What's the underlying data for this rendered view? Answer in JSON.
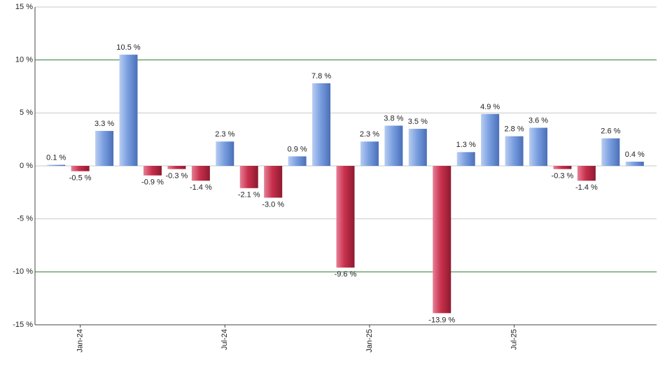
{
  "chart_data": {
    "type": "bar",
    "categories": [
      null,
      "Jan-24",
      null,
      null,
      null,
      null,
      null,
      "Jul-24",
      null,
      null,
      null,
      null,
      null,
      "Jan-25",
      null,
      null,
      null,
      null,
      null,
      "Jul-25",
      null,
      null,
      null,
      null,
      null
    ],
    "values": [
      0.1,
      -0.5,
      3.3,
      10.5,
      -0.9,
      -0.3,
      -1.4,
      2.3,
      -2.1,
      -3.0,
      0.9,
      7.8,
      -9.6,
      2.3,
      3.8,
      3.5,
      -13.9,
      1.3,
      4.9,
      2.8,
      3.6,
      -0.3,
      -1.4,
      2.6,
      0.4
    ],
    "value_labels": [
      "0.1 %",
      "-0.5 %",
      "3.3 %",
      "10.5 %",
      "-0.9 %",
      "-0.3 %",
      "-1.4 %",
      "2.3 %",
      "-2.1 %",
      "-3.0 %",
      "0.9 %",
      "7.8 %",
      "-9.6 %",
      "2.3 %",
      "3.8 %",
      "3.5 %",
      "-13.9 %",
      "1.3 %",
      "4.9 %",
      "2.8 %",
      "3.6 %",
      "-0.3 %",
      "-1.4 %",
      "2.6 %",
      "0.4 %"
    ],
    "positive_color": "#7a9fe0",
    "negative_color": "#c8304c",
    "ylim": [
      -15,
      15
    ],
    "yticks": [
      {
        "value": -15,
        "label": "-15 %"
      },
      {
        "value": -10,
        "label": "-10 %"
      },
      {
        "value": -5,
        "label": "-5 %"
      },
      {
        "value": 0,
        "label": "0 %"
      },
      {
        "value": 5,
        "label": "5 %"
      },
      {
        "value": 10,
        "label": "10 %"
      },
      {
        "value": 15,
        "label": "15 %"
      }
    ],
    "grid": true,
    "grid_color": "#c8c8c8",
    "highlight_grid_color": "#2e7d32",
    "highlight_ticks": [
      -10,
      10
    ]
  }
}
